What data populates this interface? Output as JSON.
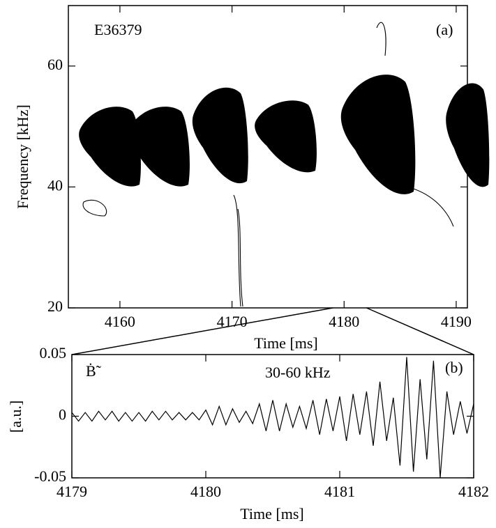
{
  "chart_data": [
    {
      "type": "contour",
      "title": "E36379",
      "panel_label": "(a)",
      "x_label": "Time [ms]",
      "y_label": "Frequency [kHz]",
      "xlim": [
        4155.4,
        4191
      ],
      "ylim": [
        20,
        70
      ],
      "xticks": [
        4160,
        4170,
        4180,
        4190
      ],
      "yticks": [
        20,
        40,
        60
      ]
    },
    {
      "type": "line",
      "panel_label": "(b)",
      "signal_label": "Ḃ̃",
      "band_label": "30-60 kHz",
      "x_label": "Time [ms]",
      "y_label": "[a.u.]",
      "xlim": [
        4179,
        4182
      ],
      "ylim": [
        -0.05,
        0.05
      ],
      "xticks": [
        4179,
        4180,
        4181,
        4182
      ],
      "yticks": [
        -0.05,
        0,
        0.05
      ],
      "series": [
        {
          "color": "#000000",
          "x": [
            4179,
            4179.05,
            4179.1,
            4179.15,
            4179.2,
            4179.25,
            4179.3,
            4179.35,
            4179.4,
            4179.45,
            4179.5,
            4179.55,
            4179.6,
            4179.65,
            4179.7,
            4179.75,
            4179.8,
            4179.85,
            4179.9,
            4179.95,
            4180,
            4180.05,
            4180.1,
            4180.15,
            4180.2,
            4180.25,
            4180.3,
            4180.35,
            4180.4,
            4180.45,
            4180.5,
            4180.55,
            4180.6,
            4180.65,
            4180.7,
            4180.75,
            4180.8,
            4180.85,
            4180.9,
            4180.95,
            4181,
            4181.05,
            4181.1,
            4181.15,
            4181.2,
            4181.25,
            4181.3,
            4181.35,
            4181.4,
            4181.45,
            4181.5,
            4181.55,
            4181.6,
            4181.65,
            4181.7,
            4181.75,
            4181.8,
            4181.85,
            4181.9,
            4181.95,
            4182
          ],
          "values": [
            0.003,
            -0.004,
            0.003,
            -0.004,
            0.004,
            -0.003,
            0.004,
            -0.004,
            0.003,
            -0.004,
            0.003,
            -0.004,
            0.004,
            -0.003,
            0.004,
            -0.003,
            0.003,
            -0.003,
            0.003,
            -0.003,
            0.005,
            -0.007,
            0.008,
            -0.007,
            0.006,
            -0.005,
            0.004,
            -0.006,
            0.01,
            -0.012,
            0.013,
            -0.012,
            0.01,
            -0.009,
            0.008,
            -0.01,
            0.013,
            -0.015,
            0.014,
            -0.012,
            0.016,
            -0.02,
            0.018,
            -0.015,
            0.02,
            -0.024,
            0.028,
            -0.02,
            0.015,
            -0.04,
            0.048,
            -0.045,
            0.03,
            -0.035,
            0.045,
            -0.05,
            0.02,
            -0.015,
            0.012,
            -0.014,
            0.01
          ]
        }
      ]
    }
  ]
}
